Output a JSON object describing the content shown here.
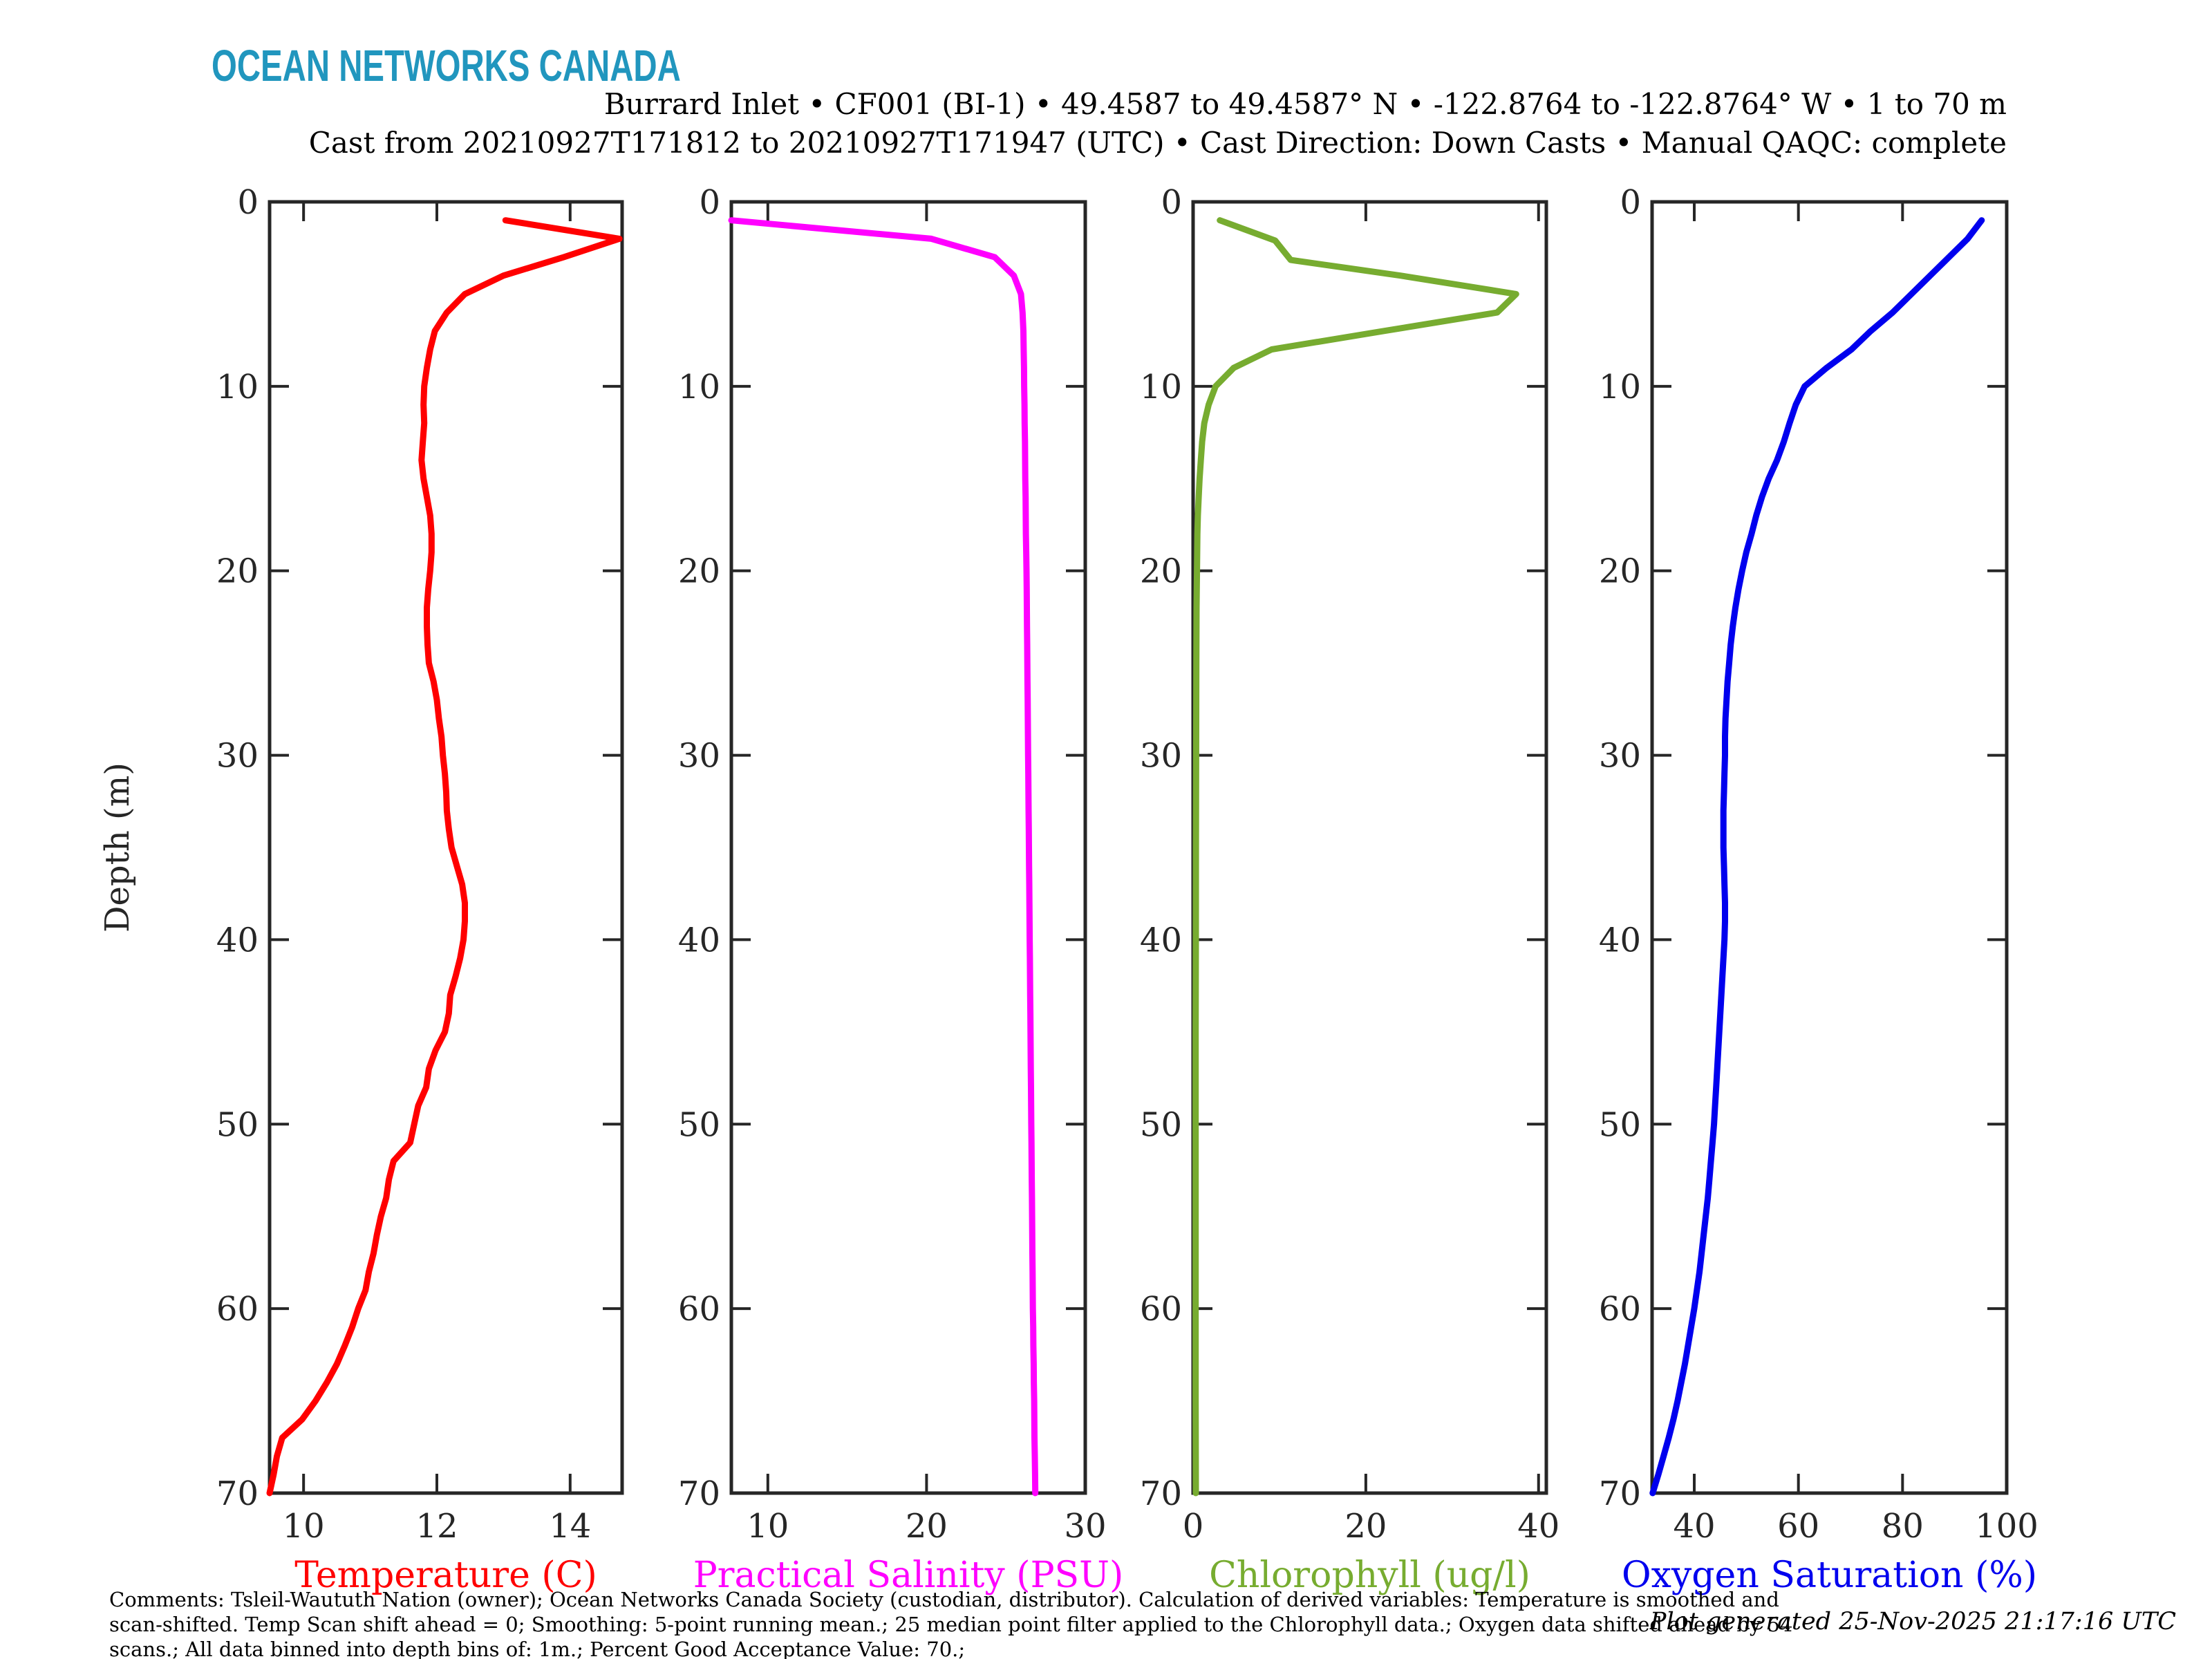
{
  "figure": {
    "logo_text": "OCEAN NETWORKS CANADA",
    "logo_color": "#2196BE",
    "title_line1": "Burrard Inlet • CF001 (BI-1) • 49.4587 to 49.4587° N • -122.8764 to -122.8764° W • 1 to 70 m",
    "title_line2": "Cast from 20210927T171812 to 20210927T171947 (UTC) • Cast Direction: Down Casts • Manual QAQC: complete",
    "depth_axis_label": "Depth (m)",
    "comments_line1": "Comments: Tsleil-Waututh Nation (owner); Ocean Networks Canada Society (custodian, distributor). Calculation of derived variables: Temperature is smoothed and",
    "comments_line2": "scan-shifted. Temp Scan shift ahead = 0; Smoothing: 5-point running mean.; 25 median point filter applied to the Chlorophyll data.; Oxygen data shifted ahead by 54",
    "comments_line3": "scans.; All data binned into depth bins of: 1m.; Percent Good Acceptance Value: 70.;",
    "generated_text": "Plot generated 25-Nov-2025 21:17:16 UTC",
    "axis_color": "#262626"
  },
  "chart_data": [
    {
      "type": "line",
      "xlabel": "Temperature (C)",
      "ylabel": "Depth (m)",
      "color": "#FF0000",
      "xlim": [
        9.49,
        14.78
      ],
      "xticks": [
        10,
        12,
        14
      ],
      "ylim": [
        0,
        70
      ],
      "yticks": [
        0,
        10,
        20,
        30,
        40,
        50,
        60,
        70
      ],
      "y_inverted": true,
      "depths": [
        1,
        2,
        3,
        4,
        5,
        6,
        7,
        8,
        9,
        10,
        11,
        12,
        13,
        14,
        15,
        16,
        17,
        18,
        19,
        20,
        21,
        22,
        23,
        24,
        25,
        26,
        27,
        28,
        29,
        30,
        31,
        32,
        33,
        34,
        35,
        36,
        37,
        38,
        39,
        40,
        41,
        42,
        43,
        44,
        45,
        46,
        47,
        48,
        49,
        50,
        51,
        52,
        53,
        54,
        55,
        56,
        57,
        58,
        59,
        60,
        61,
        62,
        63,
        64,
        65,
        66,
        67,
        68,
        69,
        70
      ],
      "values": [
        13.03,
        14.74,
        13.9,
        13.0,
        12.42,
        12.15,
        11.97,
        11.9,
        11.85,
        11.81,
        11.8,
        11.81,
        11.79,
        11.77,
        11.8,
        11.85,
        11.9,
        11.92,
        11.92,
        11.9,
        11.87,
        11.85,
        11.85,
        11.86,
        11.88,
        11.95,
        12.0,
        12.03,
        12.07,
        12.09,
        12.12,
        12.14,
        12.15,
        12.18,
        12.22,
        12.3,
        12.38,
        12.42,
        12.42,
        12.4,
        12.35,
        12.28,
        12.2,
        12.18,
        12.12,
        11.98,
        11.88,
        11.84,
        11.72,
        11.66,
        11.6,
        11.35,
        11.28,
        11.24,
        11.16,
        11.1,
        11.05,
        10.98,
        10.93,
        10.82,
        10.73,
        10.62,
        10.5,
        10.35,
        10.18,
        9.98,
        9.68,
        9.6,
        9.55,
        9.49
      ]
    },
    {
      "type": "line",
      "xlabel": "Practical Salinity (PSU)",
      "ylabel": "Depth (m)",
      "color": "#FF00FF",
      "xlim": [
        7.7,
        30
      ],
      "xticks": [
        10,
        20,
        30
      ],
      "ylim": [
        0,
        70
      ],
      "yticks": [
        0,
        10,
        20,
        30,
        40,
        50,
        60,
        70
      ],
      "y_inverted": true,
      "depths": [
        1,
        2,
        3,
        4,
        5,
        6,
        7,
        8,
        9,
        10,
        11,
        12,
        13,
        14,
        15,
        16,
        17,
        18,
        19,
        20,
        21,
        22,
        23,
        24,
        25,
        26,
        27,
        28,
        29,
        30,
        31,
        32,
        33,
        34,
        35,
        36,
        37,
        38,
        39,
        40,
        41,
        42,
        43,
        44,
        45,
        46,
        47,
        48,
        49,
        50,
        51,
        52,
        53,
        54,
        55,
        56,
        57,
        58,
        59,
        60,
        61,
        62,
        63,
        64,
        65,
        66,
        67,
        68,
        69,
        70
      ],
      "values": [
        7.7,
        20.3,
        24.3,
        25.5,
        25.95,
        26.05,
        26.1,
        26.12,
        26.14,
        26.15,
        26.17,
        26.18,
        26.2,
        26.21,
        26.22,
        26.24,
        26.25,
        26.26,
        26.28,
        26.3,
        26.31,
        26.32,
        26.33,
        26.34,
        26.35,
        26.36,
        26.37,
        26.38,
        26.39,
        26.4,
        26.41,
        26.42,
        26.43,
        26.44,
        26.45,
        26.46,
        26.47,
        26.48,
        26.49,
        26.5,
        26.51,
        26.52,
        26.53,
        26.54,
        26.55,
        26.56,
        26.57,
        26.58,
        26.59,
        26.6,
        26.61,
        26.62,
        26.63,
        26.64,
        26.65,
        26.66,
        26.67,
        26.68,
        26.69,
        26.7,
        26.72,
        26.73,
        26.75,
        26.76,
        26.78,
        26.79,
        26.8,
        26.82,
        26.84,
        26.85
      ]
    },
    {
      "type": "line",
      "xlabel": "Chlorophyll (ug/l)",
      "ylabel": "Depth (m)",
      "color": "#77AC30",
      "xlim": [
        0,
        40.9
      ],
      "xticks": [
        0,
        20,
        40
      ],
      "ylim": [
        0,
        70
      ],
      "yticks": [
        0,
        10,
        20,
        30,
        40,
        50,
        60,
        70
      ],
      "y_inverted": true,
      "depths": [
        1,
        2.1,
        3.15,
        4,
        5,
        6,
        7,
        8,
        9,
        10,
        11,
        12,
        13,
        14,
        15,
        16,
        17,
        18,
        20,
        22,
        25,
        30,
        35,
        40,
        45,
        50,
        55,
        60,
        65,
        70
      ],
      "values": [
        3.1,
        9.5,
        11.3,
        24,
        37.4,
        35.2,
        22.1,
        9.1,
        4.7,
        2.6,
        1.8,
        1.3,
        1.05,
        0.9,
        0.75,
        0.65,
        0.55,
        0.5,
        0.45,
        0.4,
        0.38,
        0.35,
        0.33,
        0.32,
        0.3,
        0.3,
        0.3,
        0.3,
        0.3,
        0.32
      ]
    },
    {
      "type": "line",
      "xlabel": "Oxygen Saturation (%)",
      "ylabel": "Depth (m)",
      "color": "#0000EE",
      "xlim": [
        31.9,
        100
      ],
      "xticks": [
        40,
        60,
        80,
        100
      ],
      "ylim": [
        0,
        70
      ],
      "yticks": [
        0,
        10,
        20,
        30,
        40,
        50,
        60,
        70
      ],
      "y_inverted": true,
      "depths": [
        1,
        2,
        3,
        4,
        5,
        6,
        7,
        8,
        9,
        10,
        11,
        12,
        13,
        14,
        15,
        16,
        17,
        18,
        19,
        20,
        21,
        22,
        23,
        24,
        25,
        26,
        27,
        28,
        29,
        30,
        31,
        32,
        33,
        34,
        35,
        36,
        37,
        38,
        39,
        40,
        41,
        42,
        43,
        44,
        45,
        46,
        47,
        48,
        49,
        50,
        51,
        52,
        53,
        54,
        55,
        56,
        57,
        58,
        59,
        60,
        61,
        62,
        63,
        64,
        65,
        66,
        67,
        68,
        69,
        70
      ],
      "values": [
        95.2,
        92.5,
        88.9,
        85.3,
        81.7,
        78.1,
        73.9,
        70.2,
        65.4,
        61.2,
        59.5,
        58.3,
        57.2,
        55.9,
        54.3,
        53.0,
        51.9,
        51.0,
        50.0,
        49.2,
        48.5,
        47.9,
        47.4,
        47.0,
        46.7,
        46.4,
        46.2,
        46.0,
        45.9,
        45.9,
        45.8,
        45.7,
        45.6,
        45.6,
        45.6,
        45.7,
        45.8,
        45.9,
        45.9,
        45.8,
        45.6,
        45.4,
        45.2,
        45.0,
        44.8,
        44.6,
        44.4,
        44.2,
        44.0,
        43.8,
        43.5,
        43.2,
        42.9,
        42.6,
        42.2,
        41.8,
        41.4,
        41.0,
        40.5,
        40.0,
        39.4,
        38.8,
        38.2,
        37.5,
        36.8,
        36.0,
        35.1,
        34.1,
        33.1,
        32.0
      ]
    }
  ]
}
